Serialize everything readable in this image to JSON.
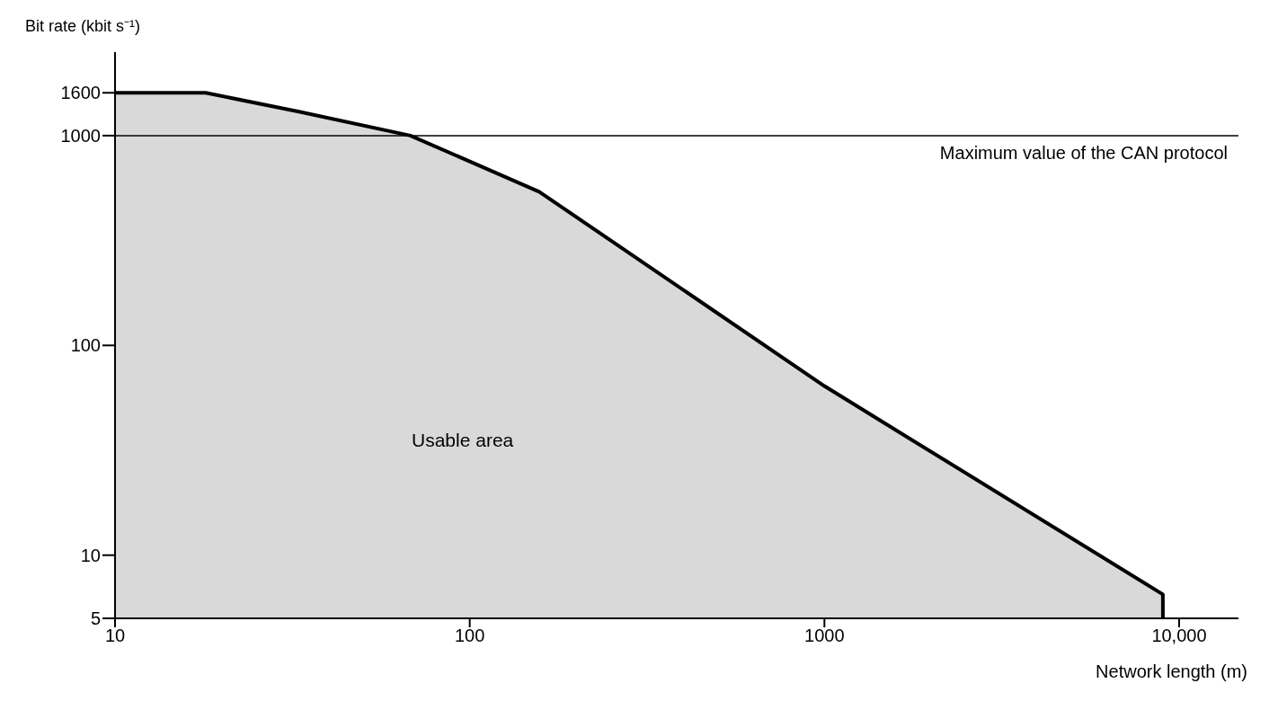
{
  "chart_data": {
    "type": "area",
    "xlabel": "Network length (m)",
    "ylabel": "Bit rate (kbit s⁻¹)",
    "x": [
      10,
      18,
      33,
      68,
      157,
      1000,
      9000,
      9000
    ],
    "series": [
      {
        "color": "#d9d9d9",
        "values": [
          1600,
          1600,
          1300,
          1000,
          540,
          64,
          6.5,
          5
        ]
      }
    ],
    "log": "xy",
    "xlim": [
      10,
      14700
    ],
    "ylim": [
      5,
      2500
    ],
    "xticks": [
      10,
      100,
      1000,
      {
        "value": 10000,
        "label": "10,000"
      }
    ],
    "yticks": [
      5,
      10,
      100,
      1000,
      1600
    ],
    "ref_lines": [
      {
        "axis": "y",
        "value": 1000,
        "label": "Maximum value of the CAN protocol",
        "color": "#000000"
      }
    ],
    "annotations": [
      "Usable area"
    ],
    "grid": false,
    "legend": false,
    "marker": "none",
    "line_style": "solid"
  }
}
